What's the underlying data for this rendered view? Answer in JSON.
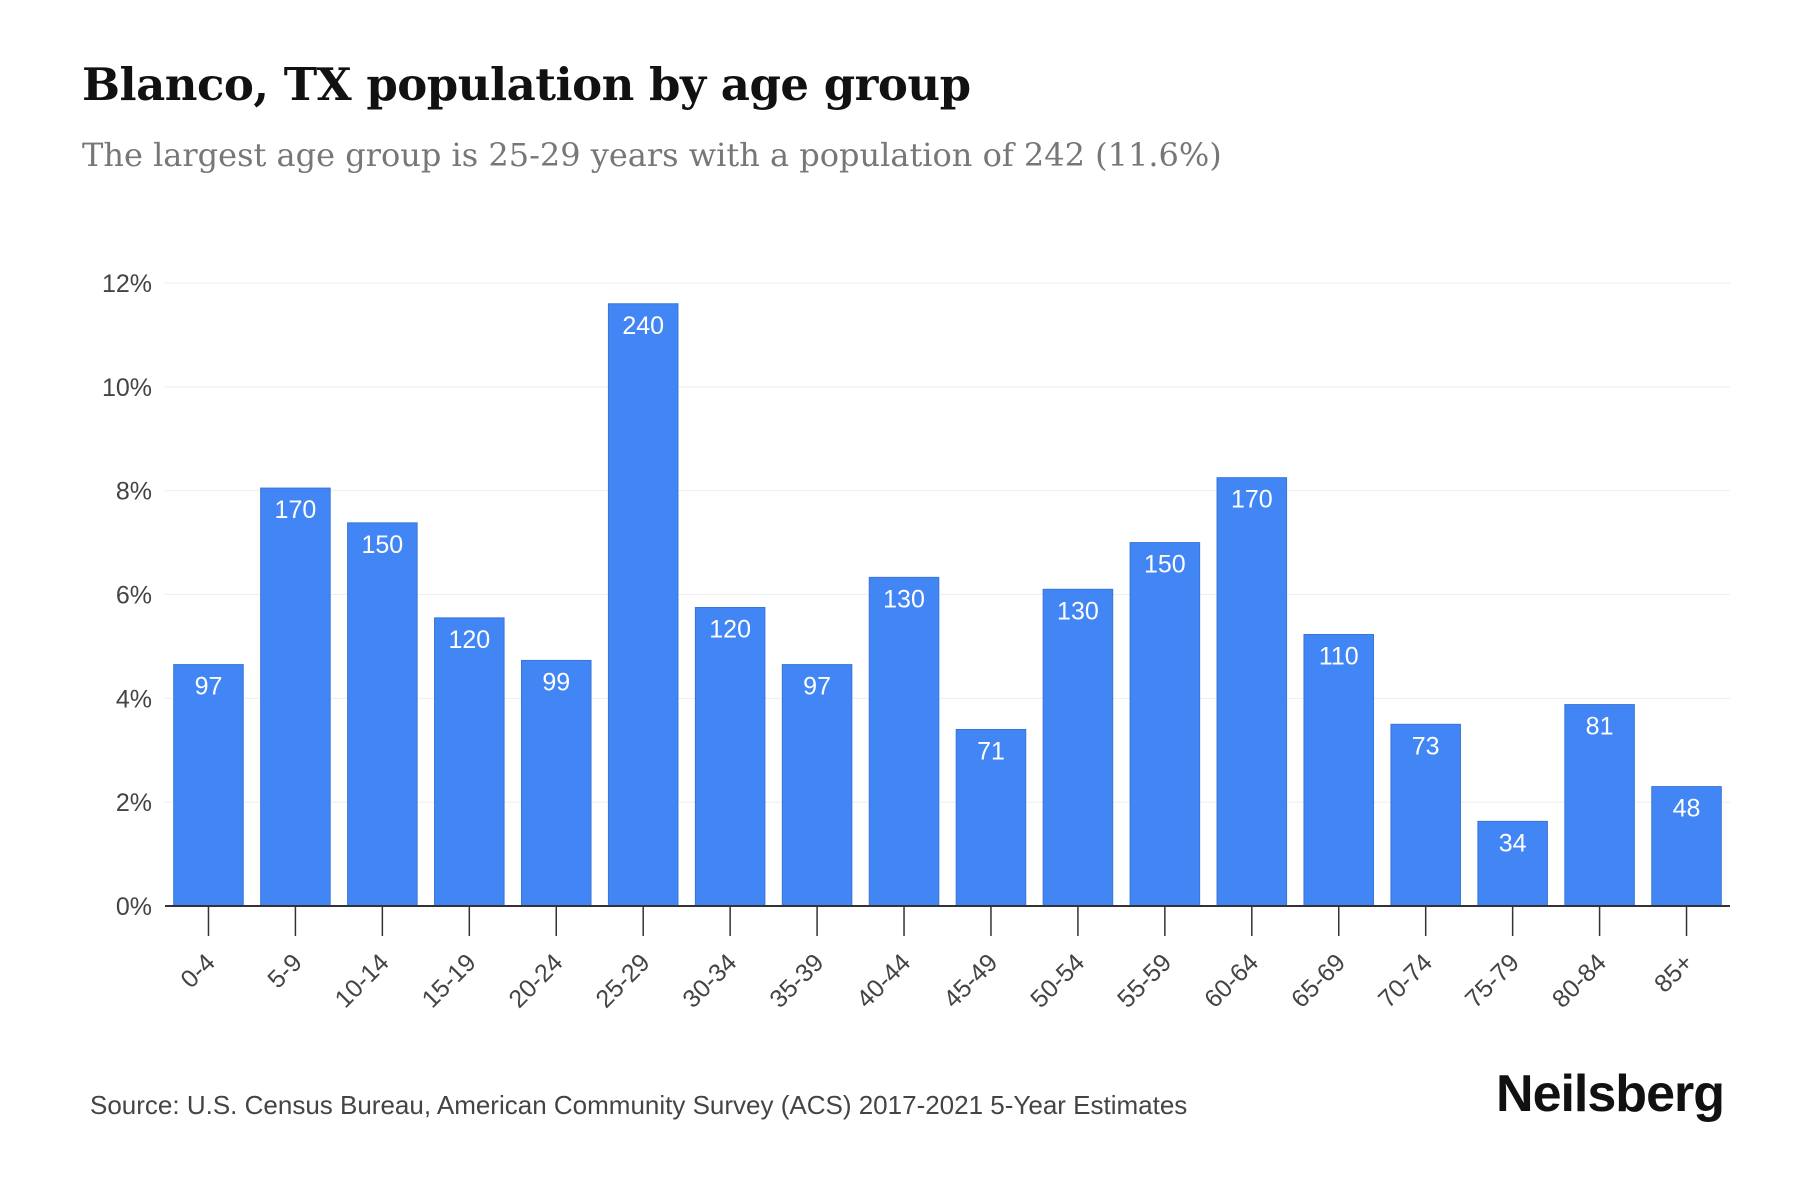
{
  "title": "Blanco, TX population by age group",
  "subtitle": "The largest age group is 25-29 years with a population of 242 (11.6%)",
  "footer": {
    "source": "Source: U.S. Census Bureau, American Community Survey (ACS) 2017-2021 5-Year Estimates",
    "brand": "Neilsberg"
  },
  "colors": {
    "bar": "#4285f4",
    "bar_label": "#ffffff",
    "axis_text": "#444444",
    "grid": "#eeeeee",
    "axis_line": "#333333"
  },
  "chart_data": {
    "type": "bar",
    "categories": [
      "0-4",
      "5-9",
      "10-14",
      "15-19",
      "20-24",
      "25-29",
      "30-34",
      "35-39",
      "40-44",
      "45-49",
      "50-54",
      "55-59",
      "60-64",
      "65-69",
      "70-74",
      "75-79",
      "80-84",
      "85+"
    ],
    "values": [
      4.65,
      8.05,
      7.38,
      5.55,
      4.73,
      11.6,
      5.75,
      4.65,
      6.33,
      3.4,
      6.1,
      7.0,
      8.25,
      5.23,
      3.5,
      1.63,
      3.88,
      2.3
    ],
    "value_labels": [
      "97",
      "170",
      "150",
      "120",
      "99",
      "240",
      "120",
      "97",
      "130",
      "71",
      "130",
      "150",
      "170",
      "110",
      "73",
      "34",
      "81",
      "48"
    ],
    "ylim": [
      0,
      12
    ],
    "yticks": [
      0,
      2,
      4,
      6,
      8,
      10,
      12
    ],
    "ytick_labels": [
      "0%",
      "2%",
      "4%",
      "6%",
      "8%",
      "10%",
      "12%"
    ],
    "xlabel": "",
    "ylabel": "",
    "grid": true
  }
}
